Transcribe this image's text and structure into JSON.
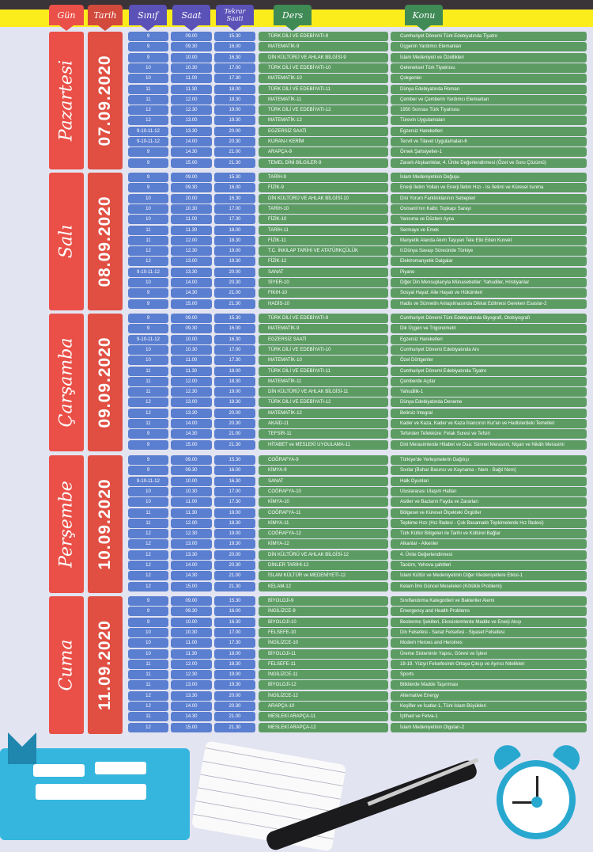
{
  "header": {
    "gun": "Gün",
    "tarih": "Tarih",
    "sinif": "Sınıf",
    "saat": "Saat",
    "tekrar_saati": "Tekrar Saati",
    "ders": "Ders",
    "konu": "Konu"
  },
  "colors": {
    "gun": "#ea5048",
    "tarih": "#d24a3c",
    "time_cols": "#5a7ed0",
    "ders_konu": "#5c9c63",
    "band": "#fbed1c",
    "background": "#e3e4f1"
  },
  "days": [
    {
      "name": "Pazartesi",
      "date": "07.09.2020",
      "rows": [
        [
          "9",
          "09.00",
          "15.30",
          "TÜRK DİLİ VE EDEBİYATI-9",
          "Cumhuriyet Dönemi Türk Edebiyatında Tiyatro"
        ],
        [
          "9",
          "09.30",
          "16.00",
          "MATEMATİK-9",
          "Üçgenin Yardımcı Elemanları"
        ],
        [
          "9",
          "10.00",
          "16.30",
          "DİN KÜLTÜRÜ VE AHLAK BİLGİSİ-9",
          "İslam Medeniyeti ve Özellikleri"
        ],
        [
          "10",
          "10.30",
          "17.00",
          "TÜRK DİLİ VE EDEBİYATI-10",
          "Geleneksel Türk Tiyatrosu"
        ],
        [
          "10",
          "11.00",
          "17.30",
          "MATEMATİK-10",
          "Çokgenler"
        ],
        [
          "11",
          "11.30",
          "18.00",
          "TÜRK DİLİ VE EDEBİYATI-11",
          "Dünya Edebiyatında Roman"
        ],
        [
          "11",
          "12.00",
          "18.30",
          "MATEMATİK-11",
          "Çember ve Çemberin Yardımcı Elemanları"
        ],
        [
          "12",
          "12.30",
          "19.00",
          "TÜRK DİLİ VE EDEBİYATI-12",
          "1950 Sonrası Türk Tiyatrosu"
        ],
        [
          "12",
          "13.00",
          "19.30",
          "MATEMATİK-12",
          "Türevin Uygulamaları"
        ],
        [
          "9-10-11-12",
          "13.30",
          "20.00",
          "EGZERSİZ SAATİ",
          "Egzersiz Hareketleri"
        ],
        [
          "9-10-11-12",
          "14.00",
          "20.30",
          "KURAN-I KERİM",
          "Tecvit ve Tilavet Uygulamaları-6"
        ],
        [
          "9",
          "14.30",
          "21.00",
          "ARAPÇA-9",
          "Örnek Şahsiyetler-1"
        ],
        [
          "9",
          "15.00",
          "21.30",
          "TEMEL DİNİ BİLGİLER-9",
          "Zararlı Alışkanlıklar, 4. Ünite Değerlendirmesi (Özet ve Soru Çözümü)"
        ]
      ]
    },
    {
      "name": "Salı",
      "date": "08.09.2020",
      "rows": [
        [
          "9",
          "09.00",
          "15.30",
          "TARİH-9",
          "İslam Medeniyetinin Doğuşu"
        ],
        [
          "9",
          "09.30",
          "16.00",
          "FİZİK-9",
          "Enerji İletim Yolları ve Enerji İletim Hızı - Isı İletimi ve Küresel Isınma"
        ],
        [
          "10",
          "10.00",
          "16.30",
          "DİN KÜLTÜRÜ VE AHLAK BİLGİSİ-10",
          "Dini Yorum Farklılıklarının Sebepleri"
        ],
        [
          "10",
          "10.30",
          "17.00",
          "TARİH-10",
          "Osmanlı'nın Kalbi: Topkapı Sarayı"
        ],
        [
          "10",
          "11.00",
          "17.30",
          "FİZİK-10",
          "Yansıma ve Düzlem Ayna"
        ],
        [
          "11",
          "11.30",
          "18.00",
          "TARİH-11",
          "Sermaye ve Emek"
        ],
        [
          "11",
          "12.00",
          "18.30",
          "FİZİK-11",
          "Manyetik Alanda Akım Taşıyan Tele Etki Eden Kuvvet"
        ],
        [
          "12",
          "12.30",
          "19.00",
          "T.C. İNKILAP TARİHİ VE ATATÜRKÇÜLÜK",
          "II.Dünya Savaşı Sürecinde Türkiye"
        ],
        [
          "12",
          "13.00",
          "19.30",
          "FİZİK-12",
          "Elektromanyetik Dalgalar"
        ],
        [
          "9-10-11-12",
          "13.30",
          "20.00",
          "SANAT",
          "Piyano"
        ],
        [
          "10",
          "14.00",
          "20.30",
          "SİYER-10",
          "Diğer Din Mensuplarıyla Münasebetler: Yahudiler, Hristiyanlar"
        ],
        [
          "9",
          "14.30",
          "21.00",
          "FIKIH-10",
          "Sosyal Hayat: Aile Hayatı ve Hükümleri"
        ],
        [
          "9",
          "15.00",
          "21.30",
          "HADİS-10",
          "Hadis ve Sünnetin Anlaşılmasında Dikkat Edilmesi Gereken Esaslar-2"
        ]
      ]
    },
    {
      "name": "Çarşamba",
      "date": "09.09.2020",
      "rows": [
        [
          "9",
          "09.00",
          "15.30",
          "TÜRK DİLİ VE EDEBİYATI-9",
          "Cumhuriyet Dönemi Türk Edebiyatında Biyografi, Otobiyografi"
        ],
        [
          "9",
          "09.30",
          "16.00",
          "MATEMATİK-9",
          "Dik Üçgen ve Trigonometri"
        ],
        [
          "9-10-11-12",
          "10.00",
          "16.30",
          "EGZERSİZ SAATİ",
          "Egzersiz Hareketleri"
        ],
        [
          "10",
          "10.30",
          "17.00",
          "TÜRK DİLİ VE EDEBİYATI-10",
          "Cumhuriyet Dönemi Edebiyatında Anı"
        ],
        [
          "10",
          "11.00",
          "17.30",
          "MATEMATİK-10",
          "Özel Dörtgenler"
        ],
        [
          "11",
          "11.30",
          "18.00",
          "TÜRK DİLİ VE EDEBİYATI-11",
          "Cumhuriyet Dönemi Edebiyatında Tiyatro"
        ],
        [
          "11",
          "12.00",
          "18.30",
          "MATEMATİK-11",
          "Çemberde Açılar"
        ],
        [
          "11",
          "12.30",
          "19.00",
          "DİN KÜLTÜRÜ VE AHLAK BİLGİSİ-11",
          "Yahudilik-1"
        ],
        [
          "12",
          "13.00",
          "19.30",
          "TÜRK DİLİ VE EDEBİYATI-12",
          "Dünya Edebiyatında Deneme"
        ],
        [
          "12",
          "13.30",
          "20.00",
          "MATEMATİK-12",
          "Belirsiz İntegral"
        ],
        [
          "11",
          "14.00",
          "20.30",
          "AKAİD-11",
          "Kader ve Kaza, Kader ve Kaza İnancının Kur'an ve Hadislerdeki Temelleri"
        ],
        [
          "9",
          "14.30",
          "21.00",
          "TEFSİR-11",
          "Tefsirden Tefekküre: Felak Suresi ve Tefsiri"
        ],
        [
          "9",
          "15.00",
          "21.30",
          "HİTABET ve MESLEKİ UYGULAMA-11",
          "Dini Merasimlerde Hitabet ve Dua: Sünnet Merasimi, Nişan ve Nikâh Merasimi"
        ]
      ]
    },
    {
      "name": "Perşembe",
      "date": "10.09.2020",
      "rows": [
        [
          "9",
          "09.00",
          "15.30",
          "COĞRAFYA-9",
          "Türkiye'de Yerleşmelerin Dağılışı"
        ],
        [
          "9",
          "09.30",
          "16.00",
          "KİMYA-9",
          "Sıvılar (Buhar Basıncı ve Kaynama - Nem - Bağıl Nem)"
        ],
        [
          "9-10-11-12",
          "10.00",
          "16.30",
          "SANAT",
          "Halk Oyunları"
        ],
        [
          "10",
          "10.30",
          "17.00",
          "COĞRAFYA-10",
          "Uluslararası Ulaşım Hatları"
        ],
        [
          "10",
          "11.00",
          "17.30",
          "KİMYA-10",
          "Asitler ve Bazların Fayda ve Zararları"
        ],
        [
          "11",
          "11.30",
          "18.00",
          "COĞRAFYA-11",
          "Bölgesel ve Küresel Ölçekteki Örgütler"
        ],
        [
          "11",
          "12.00",
          "18.30",
          "KİMYA-11",
          "Tepkime Hızı (Hız İfadesi - Çok Basamaklı Tepkimelerde Hız İfadesi)"
        ],
        [
          "12",
          "12.30",
          "19.00",
          "COĞRAFYA-12",
          "Türk Kültür Bölgeleri ile Tarihi ve Kültürel Bağlar"
        ],
        [
          "12",
          "13.00",
          "19.30",
          "KİMYA-12",
          "Alkanlar - Alkenler"
        ],
        [
          "12",
          "13.30",
          "20.00",
          "DİN KÜLTÜRÜ VE AHLAK BİLGİSİ-12",
          "4. Ünite Değerlendirmesi"
        ],
        [
          "12",
          "14.00",
          "20.30",
          "DİNLER TARİHİ-12",
          "Taoizm, Yehova şahitleri"
        ],
        [
          "12",
          "14.30",
          "21.00",
          "İSLAM KÜLTÜR ve MEDENİYETİ-12",
          "İslam Kültür ve Medeniyetinin Diğer Medeniyetlere Etkisi-1"
        ],
        [
          "12",
          "15.00",
          "21.30",
          "KELAM-12",
          "Kelam İlmi Güncel Meseleleri (Kötülük Problemi)"
        ]
      ]
    },
    {
      "name": "Cuma",
      "date": "11.09.2020",
      "rows": [
        [
          "9",
          "09.00",
          "15.30",
          "BİYOLOJİ-9",
          "Sınıflandırma Kategorileri ve Bakteriler Alemi"
        ],
        [
          "9",
          "09.30",
          "16.00",
          "İNGİLİZCE-9",
          "Emergency and Health Problems"
        ],
        [
          "9",
          "10.00",
          "16.30",
          "BİYOLOJİ-10",
          "Beslenme Şekilleri, Ekosistemlerde Madde ve Enerji Akışı"
        ],
        [
          "10",
          "10.30",
          "17.00",
          "FELSEFE-10",
          "Din Felsefesi - Sanat Felsefesi - Siyaset Felsefesi"
        ],
        [
          "10",
          "11.00",
          "17.30",
          "İNGİLİZCE-10",
          "Modern Heroes and Heroines"
        ],
        [
          "10",
          "11.30",
          "18.00",
          "BİYOLOJİ-11",
          "Üreme Sisteminin Yapısı, Görevi ve İşlevi"
        ],
        [
          "11",
          "12.00",
          "18.30",
          "FELSEFE-11",
          "18-19. Yüzyıl Felsefesinin Ortaya Çıkışı ve Ayırıcı Nitelikleri"
        ],
        [
          "11",
          "12.30",
          "19.00",
          "İNGİLİZCE-11",
          "Sports"
        ],
        [
          "11",
          "13.00",
          "19.30",
          "BİYOLOJİ-12",
          "Bitkilerde Madde Taşınması"
        ],
        [
          "12",
          "13.30",
          "20.00",
          "İNGİLİZCE-12",
          "Alternative Energy"
        ],
        [
          "12",
          "14.00",
          "20.30",
          "ARAPÇA-10",
          "Keşifler ve İcatlar-1, Türk İslam Büyükleri"
        ],
        [
          "11",
          "14.30",
          "21.00",
          "MESLEKİ ARAPÇA-11",
          "İçtihad ve Fetva-1"
        ],
        [
          "12",
          "15.00",
          "21.30",
          "MESLEKİ ARAPÇA-12",
          "İslam Medeniyetinin Olguları-2"
        ]
      ]
    }
  ]
}
